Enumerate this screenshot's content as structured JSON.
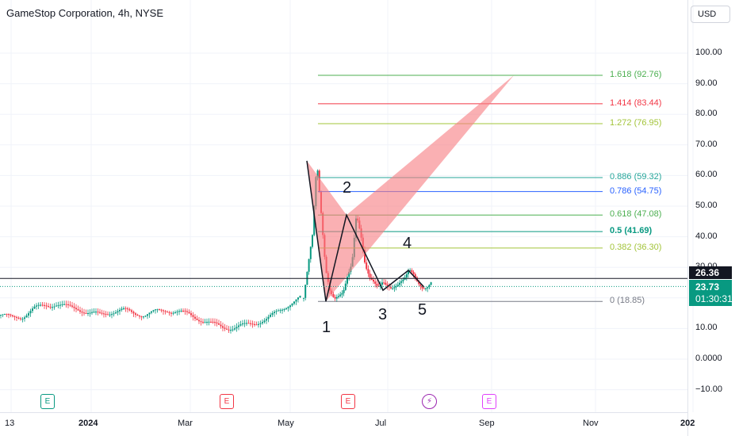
{
  "header": {
    "title": "GameStop Corporation, 4h, NYSE",
    "currency": "USD"
  },
  "axis": {
    "y_ticks": [
      "100.00",
      "90.00",
      "80.00",
      "70.00",
      "60.00",
      "50.00",
      "40.00",
      "30.00",
      "10.00",
      "0.0000",
      "−10.00"
    ],
    "x_ticks": [
      {
        "label": "13",
        "bold": false
      },
      {
        "label": "2024",
        "bold": true
      },
      {
        "label": "Mar",
        "bold": false
      },
      {
        "label": "May",
        "bold": false
      },
      {
        "label": "Jul",
        "bold": false
      },
      {
        "label": "Sep",
        "bold": false
      },
      {
        "label": "Nov",
        "bold": false
      },
      {
        "label": "202",
        "bold": true
      }
    ]
  },
  "price_tags": {
    "last_close": "26.36",
    "current": "23.73",
    "countdown": "01:30:31"
  },
  "chart_data": {
    "type": "candlestick",
    "title": "GameStop Corporation, 4h, NYSE",
    "ylim": [
      -13,
      105
    ],
    "price_level_line": 26.36,
    "current_price": 23.73,
    "fib_levels": [
      {
        "label": "1.618 (92.76)",
        "value": 92.76,
        "color": "#4caf50"
      },
      {
        "label": "1.414 (83.44)",
        "value": 83.44,
        "color": "#f23645"
      },
      {
        "label": "1.272 (76.95)",
        "value": 76.95,
        "color": "#a3c43a"
      },
      {
        "label": "0.886 (59.32)",
        "value": 59.32,
        "color": "#26a69a"
      },
      {
        "label": "0.786 (54.75)",
        "value": 54.75,
        "color": "#2962ff"
      },
      {
        "label": "0.618 (47.08)",
        "value": 47.08,
        "color": "#4caf50"
      },
      {
        "label": "0.5 (41.69)",
        "value": 41.69,
        "color": "#089981"
      },
      {
        "label": "0.382 (36.30)",
        "value": 36.3,
        "color": "#a3c43a"
      },
      {
        "label": "0 (18.85)",
        "value": 18.85,
        "color": "#787b86"
      }
    ],
    "pattern_points": [
      {
        "label": "1",
        "value": 18.85
      },
      {
        "label": "2",
        "value": 47.08
      },
      {
        "label": "3",
        "value": 22.5
      },
      {
        "label": "4",
        "value": 29.0
      },
      {
        "label": "5",
        "value": 23.5
      }
    ],
    "pattern_polygon_values": [
      64.8,
      18.85,
      47.08,
      92.76
    ],
    "events": [
      {
        "label": "E",
        "type": "dividend",
        "color": "#089981"
      },
      {
        "label": "E",
        "type": "earnings",
        "color": "#f23645"
      },
      {
        "label": "E",
        "type": "earnings",
        "color": "#f23645"
      },
      {
        "label": "⚡",
        "type": "split",
        "color": "#9c27b0"
      },
      {
        "label": "E",
        "type": "earnings",
        "color": "#e040fb"
      }
    ],
    "series": [
      {
        "segment": "pre-spike",
        "approx_values": [
          14.5,
          13.5,
          14.0,
          16.5,
          17.5,
          18.0,
          17.0,
          16.5,
          15.0,
          14.5,
          15.5,
          16.0,
          15.0,
          14.5,
          15.5,
          16.0,
          15.5,
          14.5,
          13.0,
          11.5,
          10.5,
          10.2,
          11.0,
          12.0,
          13.0,
          15.5,
          18.0,
          20.0
        ]
      },
      {
        "segment": "spike",
        "approx_values": [
          20.0,
          30.0,
          40.0,
          64.8,
          48.0,
          30.0,
          22.0,
          18.85,
          20.0,
          22.0,
          28.0,
          32.0,
          47.08,
          40.0,
          30.0,
          27.0,
          26.0,
          24.0,
          25.0,
          23.0,
          22.5,
          24.0,
          26.0,
          27.0,
          29.0,
          27.0,
          24.5,
          23.5,
          24.0,
          25.5
        ]
      }
    ]
  }
}
